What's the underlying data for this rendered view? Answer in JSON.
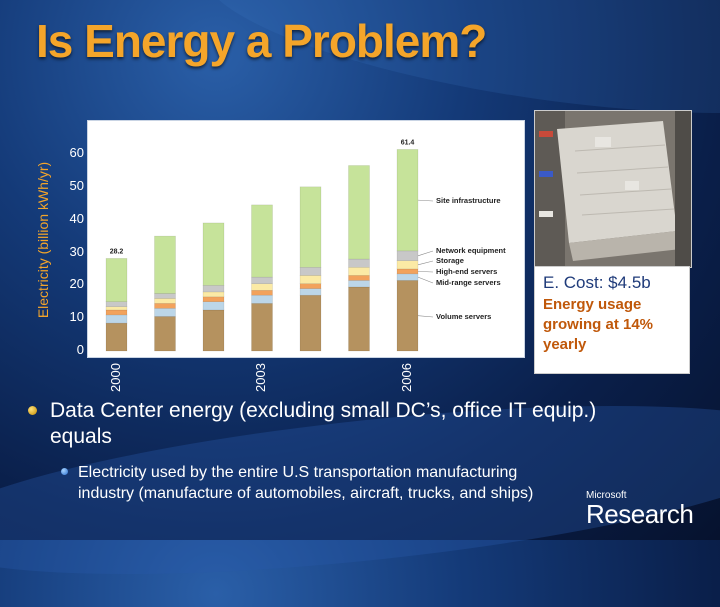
{
  "slide": {
    "title": "Is Energy a Problem?"
  },
  "chart_data": {
    "type": "bar",
    "stacked": true,
    "ylabel": "Electricity (billion kWh/yr)",
    "yticks": [
      "0",
      "10",
      "20",
      "30",
      "40",
      "50",
      "60"
    ],
    "ylim": [
      0,
      65
    ],
    "categories": [
      "2000",
      "2001",
      "2002",
      "2003",
      "2004",
      "2005",
      "2006"
    ],
    "xtick_labels": [
      "2000",
      "2003",
      "2006"
    ],
    "series": [
      {
        "name": "Volume servers",
        "values": [
          8.5,
          10.5,
          12.5,
          14.5,
          17,
          19.5,
          21.5
        ],
        "color": "#b5925f"
      },
      {
        "name": "Mid-range servers",
        "values": [
          2.5,
          2.5,
          2.5,
          2.5,
          2,
          2,
          2
        ],
        "color": "#bcd6e8"
      },
      {
        "name": "High-end servers",
        "values": [
          1.5,
          1.5,
          1.5,
          1.5,
          1.5,
          1.5,
          1.5
        ],
        "color": "#f2a25c"
      },
      {
        "name": "Storage",
        "values": [
          1,
          1.5,
          1.5,
          2,
          2.5,
          2.5,
          2.5
        ],
        "color": "#fbeaa5"
      },
      {
        "name": "Network equipment",
        "values": [
          1.5,
          1.5,
          2,
          2,
          2.5,
          2.5,
          3
        ],
        "color": "#c8c8c8"
      },
      {
        "name": "Site infrastructure",
        "values": [
          13.2,
          17.5,
          19,
          22,
          24.5,
          28.5,
          30.9
        ],
        "color": "#c6e39a"
      }
    ],
    "annotations": [
      {
        "category": "2000",
        "text": "28.2"
      },
      {
        "category": "2006",
        "text": "61.4"
      }
    ]
  },
  "photo": {
    "description_icon": "data-center-aerial-photo"
  },
  "cost_box": {
    "title": "E. Cost: $4.5b",
    "subtitle": "Energy usage growing at 14% yearly"
  },
  "bullets": {
    "level1": "Data Center energy (excluding small DC’s, office IT equip.) equals",
    "level2": "Electricity used by the entire U.S transportation manufacturing industry (manufacture of automobiles, aircraft, trucks, and ships)"
  },
  "logo": {
    "small": "Microsoft",
    "big": "Research"
  }
}
